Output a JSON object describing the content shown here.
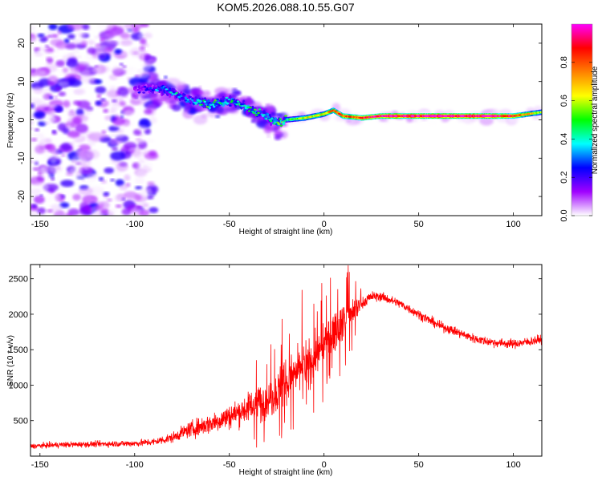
{
  "title": "KOM5.2026.088.10.55.G07",
  "chart_data": [
    {
      "type": "heatmap",
      "xlabel": "Height of straight line (km)",
      "ylabel": "Frequency (Hz)",
      "xlim": [
        -155,
        115
      ],
      "ylim": [
        -25,
        25
      ],
      "xticks": [
        -150,
        -100,
        -50,
        0,
        50,
        100
      ],
      "yticks": [
        -20,
        -10,
        0,
        10,
        20
      ],
      "colorbar": {
        "label": "Normalized spectral amplitude",
        "range": [
          0,
          1
        ],
        "ticks": [
          "0.0",
          "0.2",
          "0.4",
          "0.6",
          "0.8"
        ],
        "tick_values": [
          0.0,
          0.2,
          0.4,
          0.6,
          0.8
        ],
        "colormap": [
          "#ffffff",
          "#a000ff",
          "#0000ff",
          "#00ffff",
          "#00ff00",
          "#ffff00",
          "#ff8000",
          "#ff0000",
          "#ff00ff"
        ]
      },
      "ridge": {
        "x": [
          -100,
          -85,
          -70,
          -60,
          -50,
          -40,
          -30,
          -25,
          -20,
          -10,
          0,
          5,
          10,
          20,
          30,
          50,
          70,
          90,
          100,
          115
        ],
        "freq": [
          8,
          8,
          5,
          4,
          5,
          3,
          1,
          -1,
          0,
          0.5,
          1.5,
          2.5,
          1,
          0.5,
          1,
          1,
          1,
          1,
          1,
          2
        ],
        "amplitude": [
          0.15,
          0.3,
          0.35,
          0.4,
          0.35,
          0.4,
          0.35,
          0.4,
          0.45,
          0.6,
          0.65,
          0.75,
          0.8,
          0.85,
          0.95,
          1.0,
          1.0,
          0.95,
          0.85,
          0.55
        ]
      }
    },
    {
      "type": "line",
      "xlabel": "Height of straight line (km)",
      "ylabel": "SNR (10 * v/v)",
      "xlim": [
        -155,
        115
      ],
      "ylim": [
        0,
        2700
      ],
      "xticks": [
        -150,
        -100,
        -50,
        0,
        50,
        100
      ],
      "yticks": [
        500,
        1000,
        1500,
        2000,
        2500
      ],
      "color": "#ff0000",
      "series": [
        {
          "name": "SNR",
          "envelope_x": [
            -155,
            -140,
            -120,
            -100,
            -90,
            -80,
            -75,
            -70,
            -60,
            -50,
            -40,
            -30,
            -25,
            -20,
            -15,
            -10,
            -5,
            0,
            5,
            10,
            15,
            20,
            25,
            30,
            40,
            50,
            60,
            70,
            80,
            90,
            100,
            110,
            115
          ],
          "envelope_y": [
            140,
            160,
            170,
            180,
            200,
            260,
            330,
            380,
            460,
            560,
            680,
            800,
            900,
            1050,
            1150,
            1300,
            1400,
            1550,
            1750,
            1900,
            2000,
            2150,
            2250,
            2250,
            2150,
            2000,
            1850,
            1750,
            1650,
            1600,
            1580,
            1620,
            1650
          ],
          "spread_y": [
            60,
            70,
            70,
            80,
            90,
            120,
            150,
            200,
            250,
            300,
            350,
            420,
            480,
            500,
            520,
            520,
            500,
            450,
            420,
            380,
            300,
            150,
            120,
            110,
            110,
            110,
            110,
            110,
            110,
            110,
            110,
            110,
            110
          ]
        }
      ]
    }
  ]
}
